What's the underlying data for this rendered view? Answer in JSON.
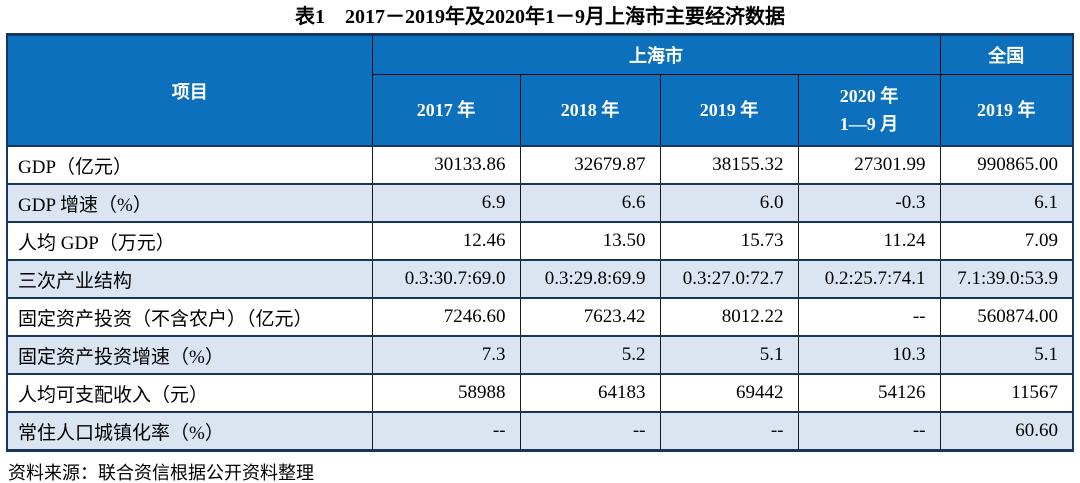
{
  "title": "表1　2017－2019年及2020年1－9月上海市主要经济数据",
  "source_note": "资料来源：联合资信根据公开资料整理",
  "colors": {
    "header_blue": "#0D70BD",
    "alt_row_blue": "#DBE5F1",
    "border_navy": "#17365D",
    "header_text": "#FFFFFF"
  },
  "table": {
    "corner_header": "项目",
    "group_headers": [
      {
        "label": "上海市",
        "colspan": 4
      },
      {
        "label": "全国",
        "colspan": 1
      }
    ],
    "year_headers": [
      {
        "line1": "2017 年"
      },
      {
        "line1": "2018 年"
      },
      {
        "line1": "2019 年"
      },
      {
        "line1": "2020 年",
        "line2": "1—9 月"
      },
      {
        "line1": "2019 年"
      }
    ],
    "rows": [
      {
        "label": "GDP（亿元）",
        "values": [
          "30133.86",
          "32679.87",
          "38155.32",
          "27301.99",
          "990865.00"
        ]
      },
      {
        "label": "GDP 增速（%）",
        "values": [
          "6.9",
          "6.6",
          "6.0",
          "-0.3",
          "6.1"
        ]
      },
      {
        "label": "人均 GDP（万元）",
        "values": [
          "12.46",
          "13.50",
          "15.73",
          "11.24",
          "7.09"
        ]
      },
      {
        "label": "三次产业结构",
        "values": [
          "0.3:30.7:69.0",
          "0.3:29.8:69.9",
          "0.3:27.0:72.7",
          "0.2:25.7:74.1",
          "7.1:39.0:53.9"
        ]
      },
      {
        "label": "固定资产投资（不含农户）（亿元）",
        "values": [
          "7246.60",
          "7623.42",
          "8012.22",
          "--",
          "560874.00"
        ]
      },
      {
        "label": "固定资产投资增速（%）",
        "values": [
          "7.3",
          "5.2",
          "5.1",
          "10.3",
          "5.1"
        ]
      },
      {
        "label": "人均可支配收入（元）",
        "values": [
          "58988",
          "64183",
          "69442",
          "54126",
          "11567"
        ]
      },
      {
        "label": "常住人口城镇化率（%）",
        "values": [
          "--",
          "--",
          "--",
          "--",
          "60.60"
        ]
      }
    ]
  }
}
